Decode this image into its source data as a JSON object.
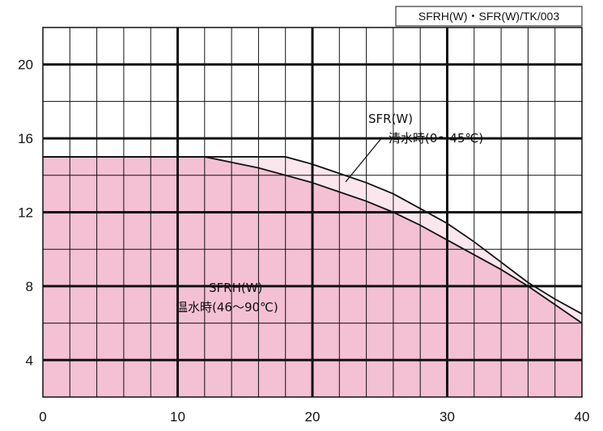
{
  "chart_data": {
    "type": "area",
    "code_label": "SFRH(W)・SFR(W)/TK/003",
    "xlim": [
      0,
      40
    ],
    "ylim": [
      2,
      22
    ],
    "x_ticks": [
      0,
      10,
      20,
      30,
      40
    ],
    "y_ticks": [
      4,
      8,
      12,
      16,
      20
    ],
    "grid": true,
    "series": [
      {
        "name": "SFRH(W) 温水時(46〜90℃)",
        "color": "#f4c0d4",
        "x": [
          0,
          12,
          14,
          16,
          18,
          20,
          22,
          24,
          26,
          28,
          30,
          32,
          34,
          36,
          38,
          40
        ],
        "y": [
          15,
          15,
          14.7,
          14.4,
          14.0,
          13.6,
          13.1,
          12.6,
          12.0,
          11.3,
          10.5,
          9.7,
          8.9,
          8.0,
          7.0,
          6.0
        ]
      },
      {
        "name": "SFR(W) 清水時(0〜45℃)",
        "color": "#fbe6ee",
        "x": [
          0,
          12,
          18,
          20,
          22,
          24,
          26,
          28,
          30,
          32,
          34,
          36,
          38,
          40
        ],
        "y": [
          15,
          15,
          15,
          14.6,
          14.1,
          13.6,
          13.0,
          12.2,
          11.4,
          10.4,
          9.3,
          8.2,
          7.3,
          6.5
        ]
      }
    ],
    "annotations": {
      "sfr_line1": "SFR(W)",
      "sfr_line2": "清水時(0〜45℃)",
      "sfrh_line1": "SFRH(W)",
      "sfrh_line2": "温水時(46〜90℃)"
    }
  }
}
